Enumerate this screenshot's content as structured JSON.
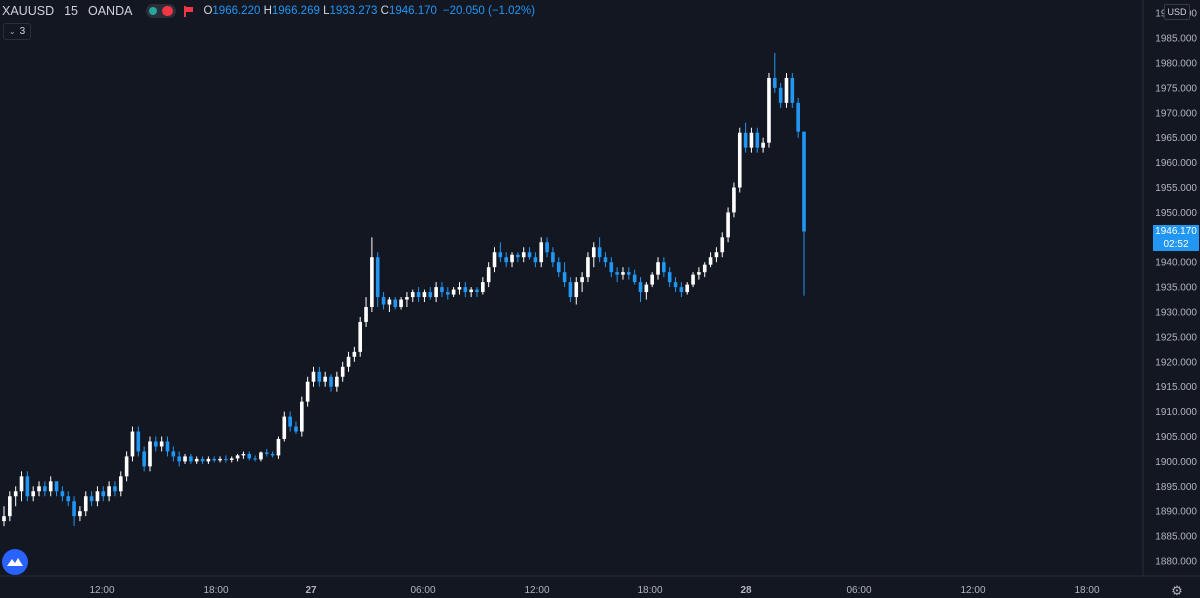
{
  "header": {
    "symbol": "XAUUSD",
    "interval": "15",
    "broker": "OANDA",
    "open_label": "O",
    "open": "1966.220",
    "high_label": "H",
    "high": "1966.269",
    "low_label": "L",
    "low": "1933.273",
    "close_label": "C",
    "close": "1946.170",
    "change": "−20.050 (−1.02%)"
  },
  "indicators_toggle": {
    "count": "3",
    "icon": "chevron-down-icon"
  },
  "currency_label": "USD",
  "price_tag": {
    "value": "1946.170",
    "countdown": "02:52"
  },
  "colors": {
    "background": "#131722",
    "up": "#ffffff",
    "down": "#2196f3",
    "text": "#b2b5be",
    "tag": "#2196f3"
  },
  "icons": {
    "logo": "tradingview-logo-icon",
    "settings": "gear-icon"
  },
  "chart_data": {
    "type": "candlestick",
    "y_ticks": [
      "1880.000",
      "1885.000",
      "1890.000",
      "1895.000",
      "1900.000",
      "1905.000",
      "1910.000",
      "1915.000",
      "1920.000",
      "1925.000",
      "1930.000",
      "1935.000",
      "1940.000",
      "1945.000",
      "1950.000",
      "1955.000",
      "1960.000",
      "1965.000",
      "1970.000",
      "1975.000",
      "1980.000",
      "1985.000",
      "1990.000"
    ],
    "y_range": [
      1878.0,
      1992.0
    ],
    "x_ticks": [
      {
        "label": "12:00",
        "bold": false
      },
      {
        "label": "18:00",
        "bold": false
      },
      {
        "label": "27",
        "bold": true
      },
      {
        "label": "06:00",
        "bold": false
      },
      {
        "label": "12:00",
        "bold": false
      },
      {
        "label": "18:00",
        "bold": false
      },
      {
        "label": "28",
        "bold": true
      },
      {
        "label": "06:00",
        "bold": false
      },
      {
        "label": "12:00",
        "bold": false
      },
      {
        "label": "18:00",
        "bold": false
      }
    ],
    "candles": [
      [
        1888.0,
        1891.0,
        1887.0,
        1889.0
      ],
      [
        1889.0,
        1894.0,
        1888.0,
        1893.0
      ],
      [
        1893.0,
        1895.0,
        1891.0,
        1894.0
      ],
      [
        1894.0,
        1898.0,
        1892.0,
        1897.0
      ],
      [
        1897.0,
        1898.0,
        1892.0,
        1893.0
      ],
      [
        1893.0,
        1895.0,
        1892.0,
        1894.0
      ],
      [
        1894.0,
        1896.0,
        1893.0,
        1895.0
      ],
      [
        1895.0,
        1896.0,
        1893.0,
        1894.0
      ],
      [
        1894.0,
        1897.0,
        1893.0,
        1896.0
      ],
      [
        1896.0,
        1896.0,
        1893.0,
        1894.0
      ],
      [
        1894.0,
        1895.0,
        1892.0,
        1893.0
      ],
      [
        1893.0,
        1894.0,
        1891.0,
        1892.0
      ],
      [
        1892.0,
        1893.0,
        1887.0,
        1889.0
      ],
      [
        1889.0,
        1891.0,
        1888.0,
        1890.0
      ],
      [
        1890.0,
        1894.0,
        1889.0,
        1893.0
      ],
      [
        1893.0,
        1894.0,
        1891.0,
        1892.0
      ],
      [
        1892.0,
        1895.0,
        1891.0,
        1894.0
      ],
      [
        1894.0,
        1895.0,
        1892.0,
        1893.0
      ],
      [
        1893.0,
        1896.0,
        1892.0,
        1895.0
      ],
      [
        1895.0,
        1896.0,
        1893.0,
        1894.0
      ],
      [
        1894.0,
        1898.0,
        1893.0,
        1897.0
      ],
      [
        1897.0,
        1902.0,
        1896.0,
        1901.0
      ],
      [
        1901.0,
        1907.0,
        1900.0,
        1906.0
      ],
      [
        1906.0,
        1907.0,
        1901.0,
        1902.0
      ],
      [
        1902.0,
        1903.0,
        1898.0,
        1899.0
      ],
      [
        1899.0,
        1905.0,
        1898.0,
        1904.0
      ],
      [
        1904.0,
        1905.0,
        1902.0,
        1903.0
      ],
      [
        1903.0,
        1905.0,
        1902.0,
        1904.0
      ],
      [
        1904.0,
        1905.0,
        1901.0,
        1902.0
      ],
      [
        1902.0,
        1903.0,
        1900.0,
        1901.0
      ],
      [
        1901.0,
        1902.0,
        1899.0,
        1900.0
      ],
      [
        1900.0,
        1901.5,
        1899.5,
        1901.0
      ],
      [
        1901.0,
        1901.5,
        1899.5,
        1900.0
      ],
      [
        1900.0,
        1901.0,
        1899.5,
        1900.5
      ],
      [
        1900.5,
        1901.0,
        1899.5,
        1900.0
      ],
      [
        1900.0,
        1901.0,
        1899.5,
        1900.5
      ],
      [
        1900.5,
        1901.0,
        1899.8,
        1900.2
      ],
      [
        1900.2,
        1901.0,
        1899.8,
        1900.5
      ],
      [
        1900.5,
        1901.2,
        1899.8,
        1900.3
      ],
      [
        1900.3,
        1901.0,
        1899.8,
        1900.6
      ],
      [
        1900.6,
        1901.5,
        1900.0,
        1901.2
      ],
      [
        1901.2,
        1902.0,
        1900.5,
        1901.5
      ],
      [
        1901.5,
        1902.0,
        1900.2,
        1900.6
      ],
      [
        1900.6,
        1901.2,
        1900.0,
        1900.4
      ],
      [
        1900.4,
        1902.0,
        1900.0,
        1901.8
      ],
      [
        1901.8,
        1902.5,
        1901.0,
        1901.5
      ],
      [
        1901.5,
        1902.0,
        1900.8,
        1901.2
      ],
      [
        1901.2,
        1905.0,
        1900.5,
        1904.5
      ],
      [
        1904.5,
        1910.0,
        1904.0,
        1909.0
      ],
      [
        1909.0,
        1910.0,
        1906.0,
        1907.0
      ],
      [
        1907.0,
        1908.0,
        1905.5,
        1906.0
      ],
      [
        1906.0,
        1913.0,
        1905.0,
        1912.0
      ],
      [
        1912.0,
        1917.0,
        1911.0,
        1916.0
      ],
      [
        1916.0,
        1919.0,
        1915.0,
        1918.0
      ],
      [
        1918.0,
        1919.0,
        1915.0,
        1916.0
      ],
      [
        1916.0,
        1918.0,
        1915.0,
        1917.0
      ],
      [
        1917.0,
        1917.5,
        1914.0,
        1915.0
      ],
      [
        1915.0,
        1918.0,
        1914.0,
        1917.0
      ],
      [
        1917.0,
        1920.0,
        1916.0,
        1919.0
      ],
      [
        1919.0,
        1922.0,
        1918.0,
        1921.0
      ],
      [
        1921.0,
        1923.0,
        1920.0,
        1922.0
      ],
      [
        1922.0,
        1929.0,
        1921.0,
        1928.0
      ],
      [
        1928.0,
        1933.0,
        1927.0,
        1931.0
      ],
      [
        1931.0,
        1945.0,
        1930.0,
        1941.0
      ],
      [
        1941.0,
        1942.0,
        1931.0,
        1933.0
      ],
      [
        1933.0,
        1934.0,
        1930.5,
        1931.5
      ],
      [
        1931.5,
        1933.0,
        1930.0,
        1932.5
      ],
      [
        1932.5,
        1933.0,
        1930.5,
        1931.0
      ],
      [
        1931.0,
        1933.0,
        1930.5,
        1932.5
      ],
      [
        1932.5,
        1934.0,
        1931.0,
        1933.0
      ],
      [
        1933.0,
        1934.5,
        1932.0,
        1934.0
      ],
      [
        1934.0,
        1935.0,
        1932.0,
        1933.0
      ],
      [
        1933.0,
        1934.5,
        1932.0,
        1934.0
      ],
      [
        1934.0,
        1935.0,
        1932.5,
        1933.0
      ],
      [
        1933.0,
        1936.0,
        1932.0,
        1935.0
      ],
      [
        1935.0,
        1936.0,
        1933.0,
        1934.0
      ],
      [
        1934.0,
        1935.0,
        1932.5,
        1933.5
      ],
      [
        1933.5,
        1935.0,
        1933.0,
        1934.5
      ],
      [
        1934.5,
        1936.0,
        1933.5,
        1935.0
      ],
      [
        1935.0,
        1936.0,
        1933.0,
        1934.0
      ],
      [
        1934.0,
        1935.0,
        1933.0,
        1934.5
      ],
      [
        1934.5,
        1935.0,
        1933.0,
        1934.0
      ],
      [
        1934.0,
        1937.0,
        1933.5,
        1936.0
      ],
      [
        1936.0,
        1940.0,
        1935.0,
        1939.0
      ],
      [
        1939.0,
        1943.0,
        1938.0,
        1942.0
      ],
      [
        1942.0,
        1944.0,
        1940.0,
        1941.0
      ],
      [
        1941.0,
        1942.0,
        1939.0,
        1940.0
      ],
      [
        1940.0,
        1942.0,
        1939.0,
        1941.5
      ],
      [
        1941.5,
        1942.0,
        1940.0,
        1941.0
      ],
      [
        1941.0,
        1943.0,
        1940.0,
        1942.0
      ],
      [
        1942.0,
        1943.0,
        1940.5,
        1941.0
      ],
      [
        1941.0,
        1942.0,
        1939.0,
        1940.0
      ],
      [
        1940.0,
        1945.0,
        1939.0,
        1944.0
      ],
      [
        1944.0,
        1945.0,
        1941.0,
        1942.0
      ],
      [
        1942.0,
        1943.0,
        1939.0,
        1940.0
      ],
      [
        1940.0,
        1941.0,
        1937.0,
        1938.0
      ],
      [
        1938.0,
        1940.0,
        1935.0,
        1936.0
      ],
      [
        1936.0,
        1937.0,
        1932.0,
        1933.0
      ],
      [
        1933.0,
        1937.0,
        1931.5,
        1936.0
      ],
      [
        1936.0,
        1938.0,
        1934.0,
        1937.0
      ],
      [
        1937.0,
        1942.0,
        1936.0,
        1941.0
      ],
      [
        1941.0,
        1944.0,
        1939.0,
        1943.0
      ],
      [
        1943.0,
        1945.0,
        1940.0,
        1941.0
      ],
      [
        1941.0,
        1942.0,
        1939.0,
        1940.0
      ],
      [
        1940.0,
        1941.0,
        1937.0,
        1938.0
      ],
      [
        1938.0,
        1939.0,
        1936.0,
        1937.5
      ],
      [
        1937.5,
        1939.0,
        1936.5,
        1938.0
      ],
      [
        1938.0,
        1939.0,
        1936.5,
        1937.5
      ],
      [
        1937.5,
        1938.5,
        1935.5,
        1936.0
      ],
      [
        1936.0,
        1937.0,
        1932.0,
        1934.0
      ],
      [
        1934.0,
        1936.0,
        1932.5,
        1935.5
      ],
      [
        1935.5,
        1938.0,
        1935.0,
        1937.5
      ],
      [
        1937.5,
        1941.0,
        1936.5,
        1940.0
      ],
      [
        1940.0,
        1941.0,
        1937.0,
        1938.0
      ],
      [
        1938.0,
        1939.0,
        1935.0,
        1936.0
      ],
      [
        1936.0,
        1937.0,
        1934.0,
        1935.0
      ],
      [
        1935.0,
        1936.0,
        1933.0,
        1934.0
      ],
      [
        1934.0,
        1936.0,
        1933.5,
        1935.5
      ],
      [
        1935.5,
        1938.0,
        1935.0,
        1937.5
      ],
      [
        1937.5,
        1939.0,
        1936.5,
        1938.0
      ],
      [
        1938.0,
        1940.0,
        1937.0,
        1939.5
      ],
      [
        1939.5,
        1942.0,
        1939.0,
        1941.0
      ],
      [
        1941.0,
        1943.0,
        1940.0,
        1942.0
      ],
      [
        1942.0,
        1946.0,
        1941.0,
        1945.0
      ],
      [
        1945.0,
        1951.0,
        1944.0,
        1950.0
      ],
      [
        1950.0,
        1956.0,
        1949.0,
        1955.0
      ],
      [
        1955.0,
        1967.0,
        1954.0,
        1966.0
      ],
      [
        1966.0,
        1968.0,
        1962.0,
        1963.0
      ],
      [
        1963.0,
        1967.0,
        1962.0,
        1966.0
      ],
      [
        1966.0,
        1967.0,
        1962.0,
        1963.0
      ],
      [
        1963.0,
        1965.0,
        1962.0,
        1964.0
      ],
      [
        1964.0,
        1978.0,
        1963.0,
        1977.0
      ],
      [
        1977.0,
        1982.0,
        1974.0,
        1975.0
      ],
      [
        1975.0,
        1976.0,
        1971.0,
        1972.0
      ],
      [
        1972.0,
        1978.0,
        1971.0,
        1977.0
      ],
      [
        1977.0,
        1978.0,
        1971.0,
        1972.0
      ],
      [
        1972.0,
        1973.0,
        1965.0,
        1966.2
      ],
      [
        1966.2,
        1966.269,
        1933.273,
        1946.17
      ]
    ]
  }
}
